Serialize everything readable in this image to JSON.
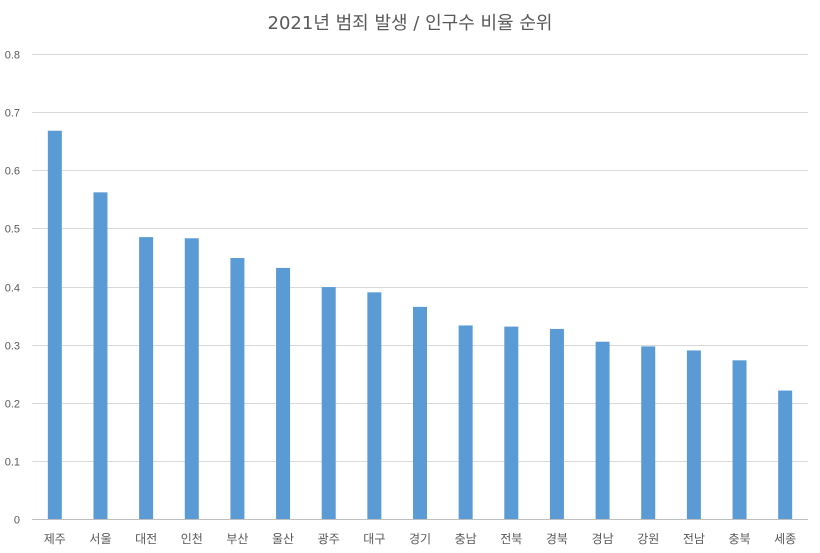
{
  "chart_data": {
    "type": "bar",
    "title": "2021년 범죄 발생 / 인구수 비율 순위",
    "xlabel": "",
    "ylabel": "",
    "categories": [
      "제주",
      "서울",
      "대전",
      "인천",
      "부산",
      "울산",
      "광주",
      "대구",
      "경기",
      "충남",
      "전북",
      "경북",
      "경남",
      "강원",
      "전남",
      "충북",
      "세종"
    ],
    "values": [
      0.668,
      0.562,
      0.485,
      0.483,
      0.449,
      0.432,
      0.399,
      0.39,
      0.365,
      0.333,
      0.331,
      0.327,
      0.305,
      0.297,
      0.29,
      0.273,
      0.221
    ],
    "ylim": [
      0,
      0.8
    ],
    "yticks": [
      "0",
      "0.1",
      "0.2",
      "0.3",
      "0.4",
      "0.5",
      "0.6",
      "0.7",
      "0.8"
    ],
    "grid": true,
    "legend": "none",
    "bar_color": "#5b9bd5"
  }
}
